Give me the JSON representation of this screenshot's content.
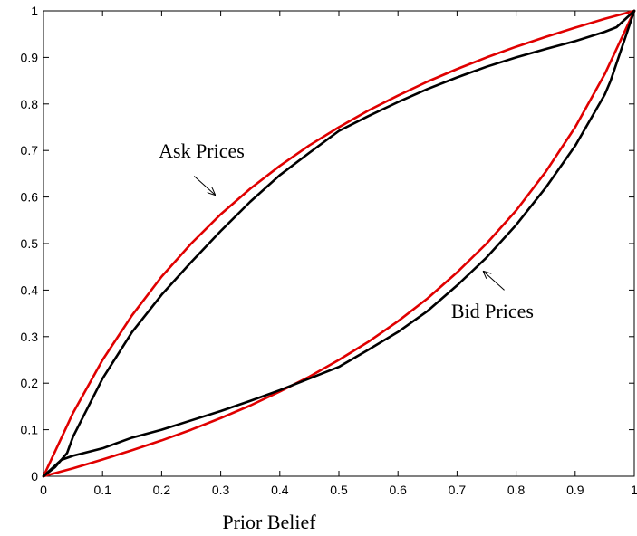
{
  "chart_data": {
    "type": "line",
    "title": "",
    "xlabel": "Prior Belief",
    "ylabel": "",
    "xlim": [
      0,
      1
    ],
    "ylim": [
      0,
      1
    ],
    "xticks": [
      "0",
      "0.1",
      "0.2",
      "0.3",
      "0.4",
      "0.5",
      "0.6",
      "0.7",
      "0.8",
      "0.9",
      "1"
    ],
    "yticks": [
      "0",
      "0.1",
      "0.2",
      "0.3",
      "0.4",
      "0.5",
      "0.6",
      "0.7",
      "0.8",
      "0.9",
      "1"
    ],
    "grid": false,
    "legend": "none",
    "colors": {
      "bound": "#e00000",
      "price": "#000000"
    },
    "series": [
      {
        "color": "#e00000",
        "x": [
          0,
          0.05,
          0.1,
          0.15,
          0.2,
          0.25,
          0.3,
          0.35,
          0.4,
          0.45,
          0.5,
          0.55,
          0.6,
          0.65,
          0.7,
          0.75,
          0.8,
          0.85,
          0.9,
          0.95,
          1
        ],
        "y": [
          0,
          0.136,
          0.25,
          0.346,
          0.429,
          0.5,
          0.563,
          0.618,
          0.667,
          0.711,
          0.75,
          0.786,
          0.818,
          0.848,
          0.875,
          0.9,
          0.923,
          0.944,
          0.964,
          0.983,
          1
        ]
      },
      {
        "color": "#e00000",
        "x": [
          0,
          0.05,
          0.1,
          0.15,
          0.2,
          0.25,
          0.3,
          0.35,
          0.4,
          0.45,
          0.5,
          0.55,
          0.6,
          0.65,
          0.7,
          0.75,
          0.8,
          0.85,
          0.9,
          0.95,
          1
        ],
        "y": [
          0,
          0.017,
          0.036,
          0.056,
          0.077,
          0.1,
          0.125,
          0.152,
          0.182,
          0.214,
          0.25,
          0.289,
          0.333,
          0.382,
          0.438,
          0.5,
          0.571,
          0.654,
          0.75,
          0.864,
          1
        ]
      },
      {
        "color": "#000000",
        "x": [
          0,
          0.02,
          0.04,
          0.05,
          0.1,
          0.15,
          0.2,
          0.25,
          0.3,
          0.35,
          0.4,
          0.45,
          0.5,
          0.55,
          0.6,
          0.65,
          0.7,
          0.75,
          0.8,
          0.85,
          0.9,
          0.95,
          0.97,
          1
        ],
        "y": [
          0,
          0.02,
          0.05,
          0.085,
          0.21,
          0.31,
          0.39,
          0.46,
          0.527,
          0.59,
          0.647,
          0.695,
          0.742,
          0.774,
          0.804,
          0.832,
          0.857,
          0.88,
          0.9,
          0.918,
          0.935,
          0.955,
          0.965,
          1
        ]
      },
      {
        "color": "#000000",
        "x": [
          0,
          0.03,
          0.05,
          0.1,
          0.15,
          0.2,
          0.25,
          0.3,
          0.35,
          0.4,
          0.45,
          0.5,
          0.55,
          0.6,
          0.65,
          0.7,
          0.75,
          0.8,
          0.85,
          0.9,
          0.95,
          0.96,
          0.98,
          1
        ],
        "y": [
          0,
          0.035,
          0.044,
          0.06,
          0.083,
          0.1,
          0.12,
          0.14,
          0.162,
          0.185,
          0.21,
          0.235,
          0.272,
          0.31,
          0.355,
          0.41,
          0.47,
          0.54,
          0.62,
          0.71,
          0.82,
          0.85,
          0.925,
          1
        ]
      }
    ],
    "annotations": [
      {
        "text": "Ask Prices",
        "x": 0.195,
        "y": 0.685,
        "arrow_to": [
          0.29,
          0.605
        ],
        "arrow_from": [
          0.255,
          0.645
        ]
      },
      {
        "text": "Bid Prices",
        "x": 0.69,
        "y": 0.34,
        "arrow_to": [
          0.745,
          0.44
        ],
        "arrow_from": [
          0.78,
          0.4
        ]
      }
    ]
  }
}
